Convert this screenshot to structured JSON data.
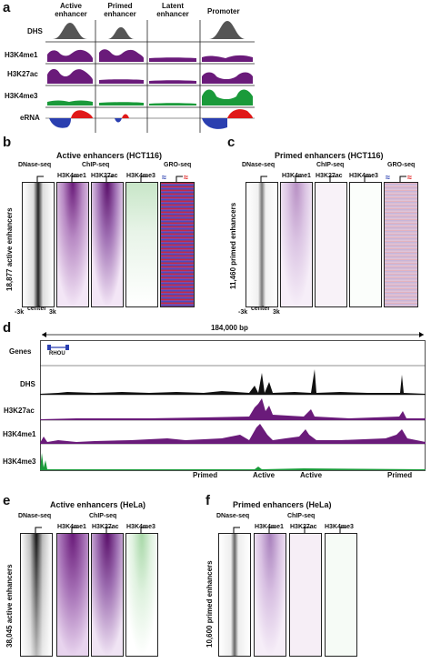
{
  "panel_a": {
    "label": "a",
    "columns": [
      "Active\nenhancer",
      "Primed\nenhancer",
      "Latent\nenhancer",
      "Promoter"
    ],
    "col_active": "Active enhancer",
    "col_primed": "Primed enhancer",
    "col_latent": "Latent enhancer",
    "col_promoter": "Promoter",
    "rows": [
      "DHS",
      "H3K4me1",
      "H3K27ac",
      "H3K4me3",
      "eRNA"
    ]
  },
  "panel_b": {
    "label": "b",
    "title": "Active enhancers (HCT116)",
    "dnase": "DNase-seq",
    "chip": "ChIP-seq",
    "gro": "GRO-seq",
    "tracks": [
      "H3K4me1",
      "H3K27ac",
      "H3K4me3"
    ],
    "ylabel": "18,877 active enhancers",
    "xleft": "-3k",
    "xcenter": "center",
    "xright": "3k"
  },
  "panel_c": {
    "label": "c",
    "title": "Primed enhancers (HCT116)",
    "dnase": "DNase-seq",
    "chip": "ChIP-seq",
    "gro": "GRO-seq",
    "tracks": [
      "H3K4me1",
      "H3K27ac",
      "H3K4me3"
    ],
    "ylabel": "11,460 primed enhancers",
    "xleft": "-3k",
    "xcenter": "center",
    "xright": "3k"
  },
  "panel_d": {
    "label": "d",
    "scale": "184,000 bp",
    "gene": "RHOU",
    "rows": [
      "Genes",
      "DHS",
      "H3K27ac",
      "H3K4me1",
      "H3K4me3"
    ],
    "annotations": [
      "Primed",
      "Active",
      "Active",
      "Primed"
    ]
  },
  "panel_e": {
    "label": "e",
    "title": "Active enhancers (HeLa)",
    "dnase": "DNase-seq",
    "chip": "ChIP-seq",
    "tracks": [
      "H3K4me1",
      "H3K27ac",
      "H3K4me3"
    ],
    "ylabel": "38,045 active enhancers"
  },
  "panel_f": {
    "label": "f",
    "title": "Primed enhancers (HeLa)",
    "dnase": "DNase-seq",
    "chip": "ChIP-seq",
    "tracks": [
      "H3K4me1",
      "H3K27ac",
      "H3K4me3"
    ],
    "ylabel": "10,600 primed enhancers"
  },
  "colors": {
    "dhs": "#555555",
    "purple": "#6a1b7a",
    "green": "#1a9a3a",
    "blue": "#2a3fb0",
    "red": "#e01818"
  }
}
